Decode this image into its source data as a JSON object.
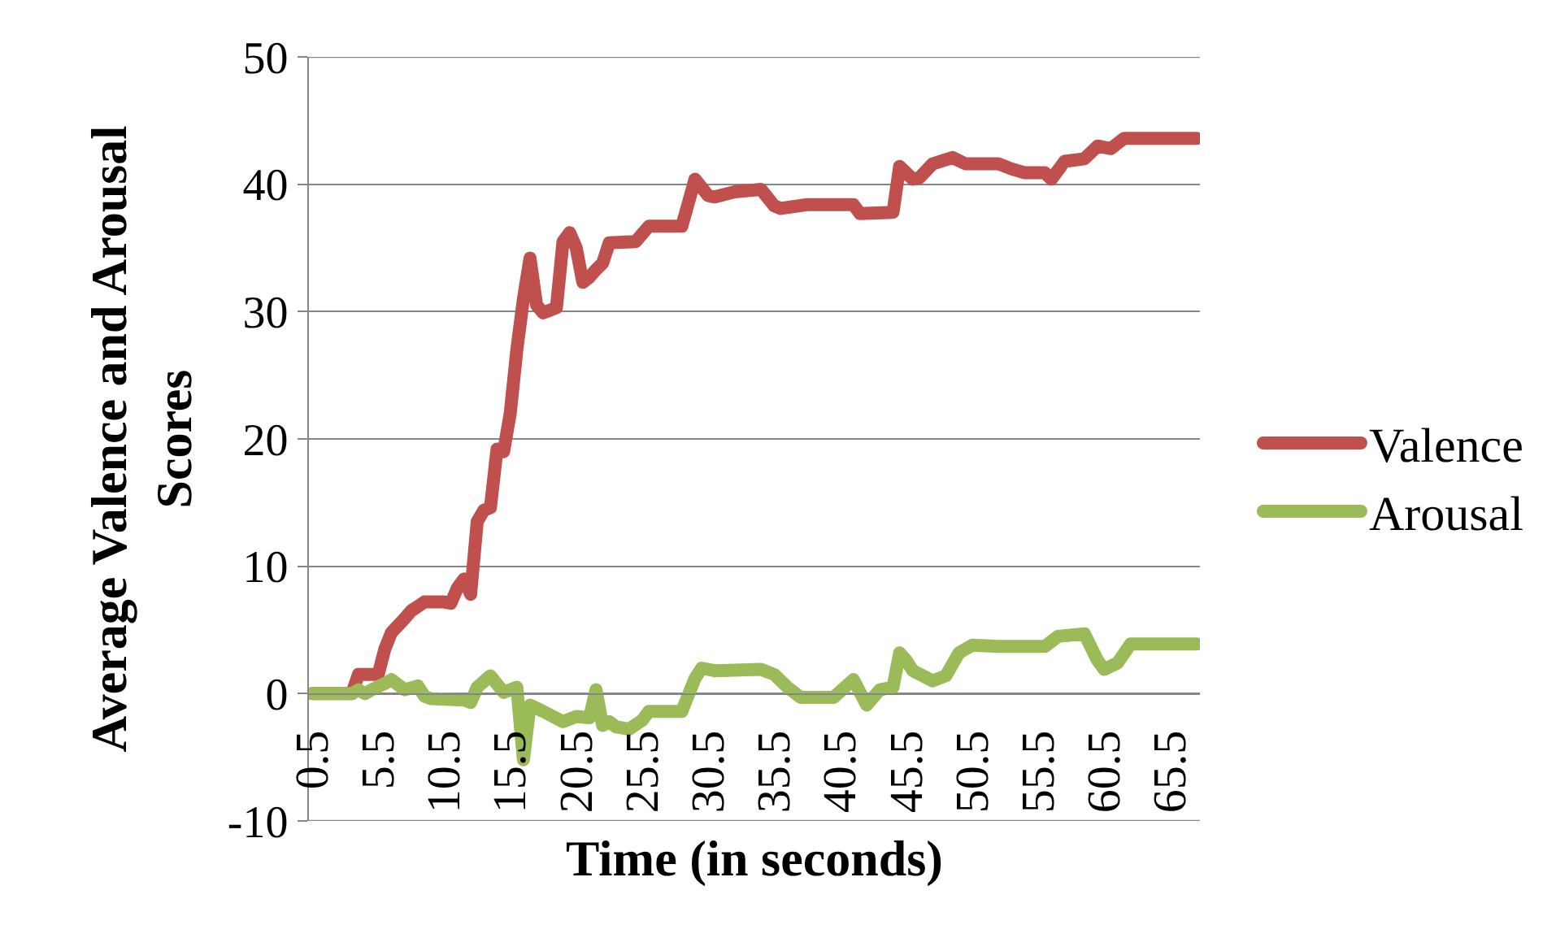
{
  "chart_data": {
    "type": "line",
    "xlabel": "Time (in seconds)",
    "ylabel": "Average Valence and Arousal Scores",
    "xlim": [
      0.25,
      67.75
    ],
    "xticks": [
      0.5,
      5.5,
      10.5,
      15.5,
      20.5,
      25.5,
      30.5,
      35.5,
      40.5,
      45.5,
      50.5,
      55.5,
      60.5,
      65.5
    ],
    "ylim": [
      -10,
      50
    ],
    "yticks": [
      -10,
      0,
      10,
      20,
      30,
      40,
      50
    ],
    "grid": "y",
    "legend": "right",
    "marker": "none",
    "line_style": "solid",
    "series": [
      {
        "name": "Valence",
        "color": "#c0504d",
        "x": [
          0.5,
          3.5,
          4,
          5.5,
          6,
          6.5,
          7.5,
          8,
          9,
          10.5,
          11,
          11.5,
          12,
          12.5,
          13,
          13.5,
          14,
          14.5,
          15,
          15.5,
          16,
          16.5,
          17,
          17.5,
          18,
          18.5,
          19,
          19.5,
          20,
          20.5,
          21,
          21.5,
          22,
          22.5,
          23,
          25,
          26,
          28.5,
          29.5,
          30.5,
          31,
          32.5,
          34.5,
          35.5,
          36,
          38,
          41.5,
          42,
          44.5,
          45,
          46,
          46.5,
          47.5,
          49,
          50,
          52.5,
          53.5,
          54.5,
          56,
          56.5,
          57.5,
          59,
          60,
          61,
          62,
          67.5
        ],
        "values": [
          0,
          0,
          1.5,
          1.5,
          3.5,
          4.8,
          5.9,
          6.5,
          7.2,
          7.2,
          7.1,
          8.3,
          9,
          7.8,
          13.5,
          14.4,
          14.6,
          19.2,
          19,
          22,
          27,
          31,
          34.2,
          30.5,
          29.9,
          30.1,
          30.3,
          35.5,
          36.2,
          35,
          32.3,
          32.7,
          33.3,
          33.8,
          35.4,
          35.5,
          36.7,
          36.7,
          40.4,
          39.1,
          39,
          39.4,
          39.6,
          38.3,
          38.1,
          38.4,
          38.4,
          37.7,
          37.8,
          41.4,
          40.4,
          40.5,
          41.6,
          42.1,
          41.6,
          41.6,
          41.2,
          40.9,
          40.9,
          40.4,
          41.8,
          42,
          43,
          42.8,
          43.6,
          43.6
        ]
      },
      {
        "name": "Arousal",
        "color": "#9bbb59",
        "x": [
          0.5,
          3.5,
          4,
          4.5,
          5,
          6,
          6.5,
          7,
          7.5,
          8.5,
          9,
          9.5,
          12,
          12.5,
          13,
          14,
          15,
          16,
          16.5,
          17,
          18,
          19.5,
          20.5,
          21.5,
          22,
          22.5,
          23,
          23.5,
          24.5,
          25.5,
          26,
          28.5,
          29.5,
          30,
          31,
          34.5,
          35.5,
          36.5,
          37.5,
          40,
          41.5,
          42.5,
          43.5,
          44.5,
          45,
          45.5,
          46,
          47.5,
          48.5,
          49.5,
          50.5,
          52.5,
          56,
          57,
          59,
          60,
          60.5,
          61.5,
          62.5,
          67.5
        ],
        "values": [
          0,
          0,
          0.3,
          0,
          0.3,
          0.8,
          1.1,
          0.7,
          0.3,
          0.6,
          -0.2,
          -0.4,
          -0.5,
          -0.7,
          0.5,
          1.4,
          0.1,
          0.5,
          -5.2,
          -0.9,
          -1.4,
          -2.2,
          -1.8,
          -1.9,
          0.3,
          -2.5,
          -2.2,
          -2.6,
          -2.8,
          -2.1,
          -1.4,
          -1.4,
          1.2,
          2,
          1.8,
          1.9,
          1.5,
          0.5,
          -0.3,
          -0.3,
          1.1,
          -0.9,
          0.3,
          0.5,
          3.2,
          2.6,
          1.8,
          1,
          1.4,
          3.2,
          3.8,
          3.7,
          3.7,
          4.5,
          4.7,
          2.6,
          1.9,
          2.4,
          3.9,
          3.9
        ]
      }
    ]
  }
}
